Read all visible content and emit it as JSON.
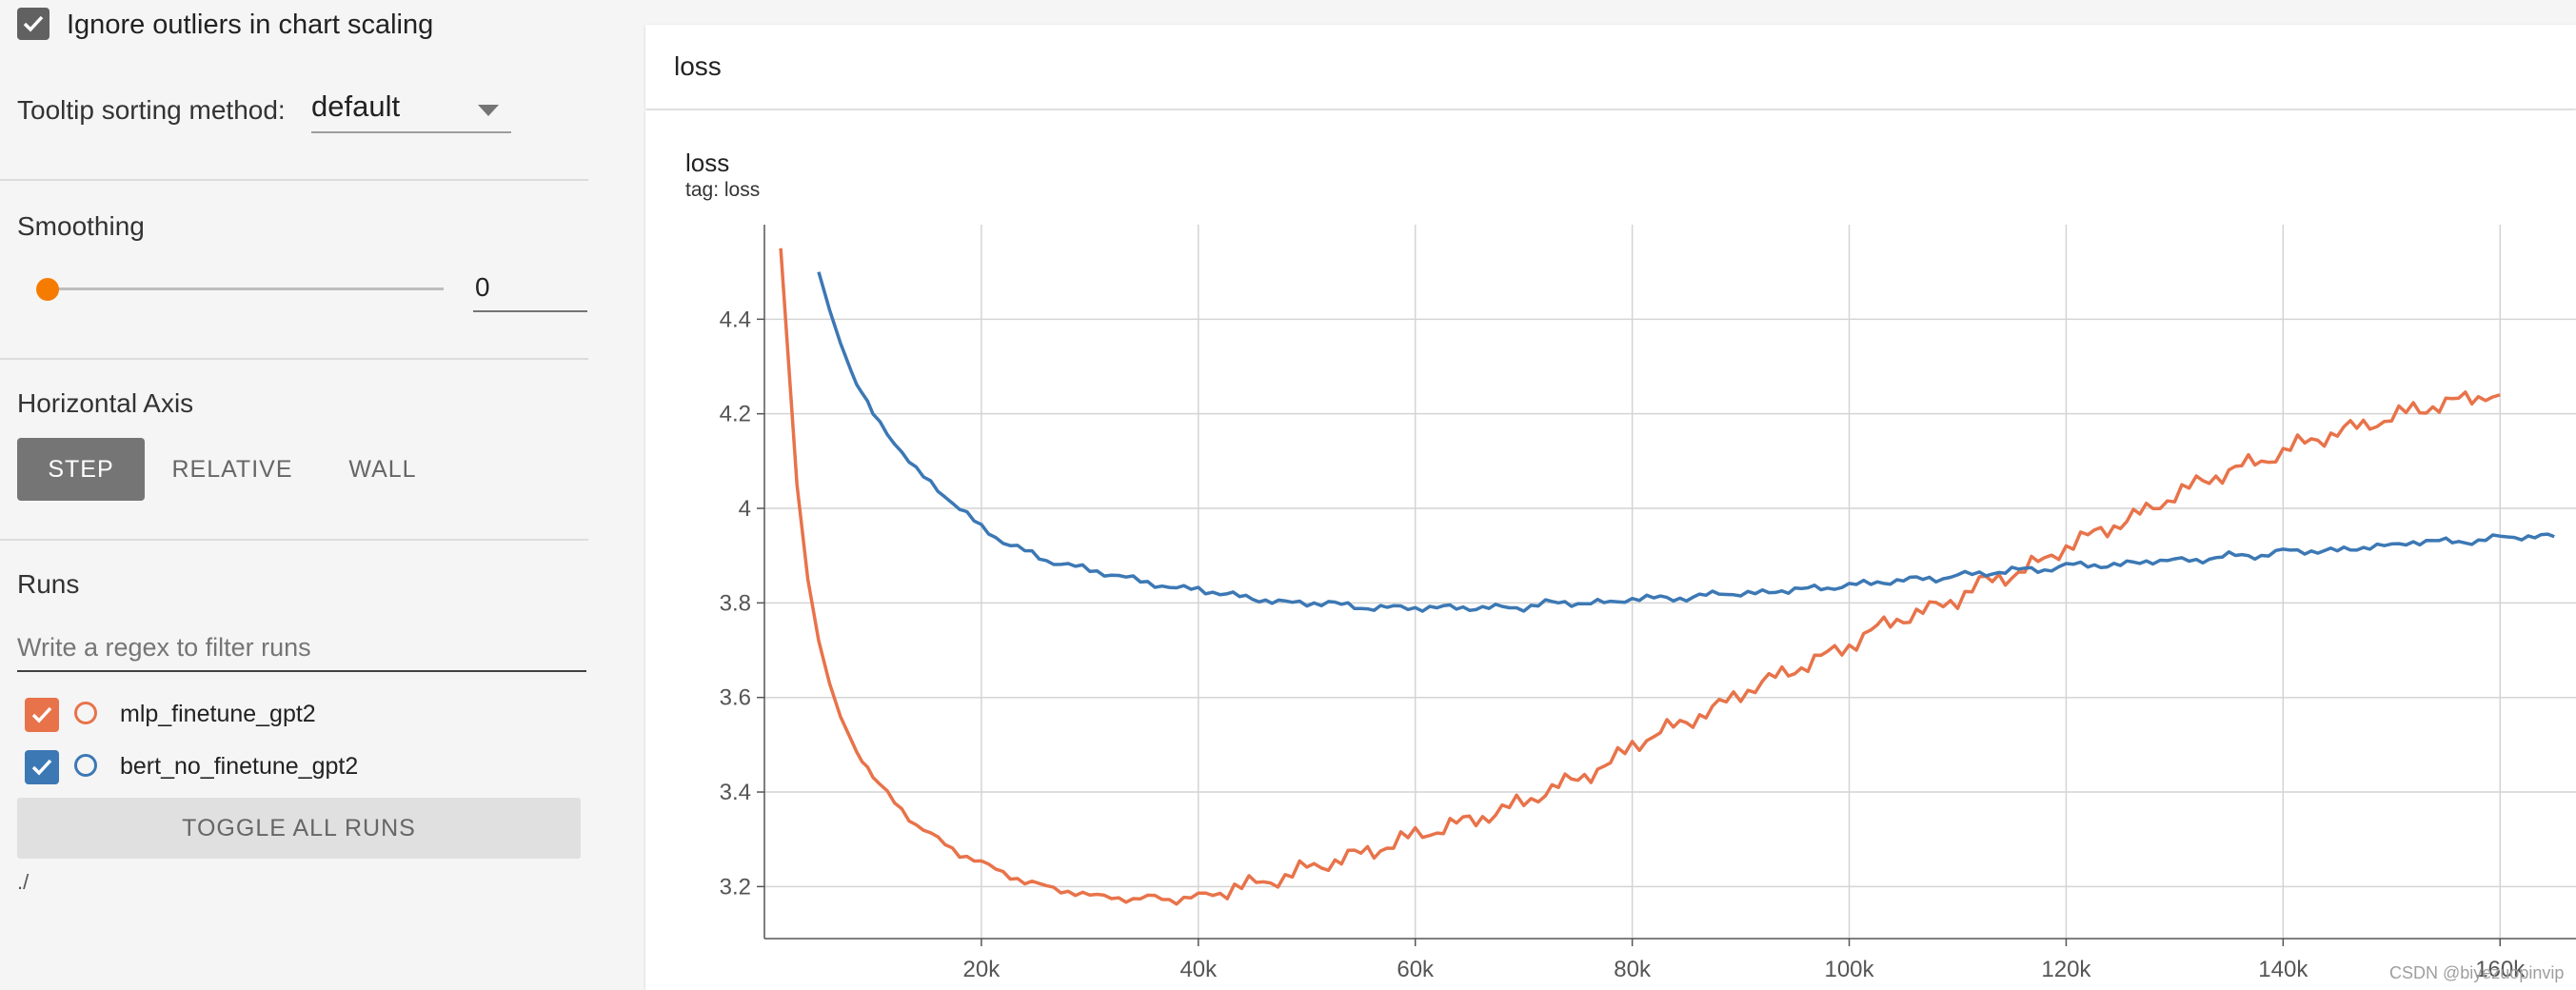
{
  "sidebar": {
    "ignore_outliers": {
      "label": "Ignore outliers in chart scaling",
      "checked": true
    },
    "tooltip": {
      "label": "Tooltip sorting method:",
      "value": "default"
    },
    "smoothing": {
      "label": "Smoothing",
      "value": "0"
    },
    "horizontal_axis": {
      "label": "Horizontal Axis",
      "options": [
        "STEP",
        "RELATIVE",
        "WALL"
      ],
      "selected": "STEP"
    },
    "runs": {
      "label": "Runs",
      "filter_placeholder": "Write a regex to filter runs",
      "items": [
        {
          "name": "mlp_finetune_gpt2",
          "color": "#e8734a",
          "checked": true
        },
        {
          "name": "bert_no_finetune_gpt2",
          "color": "#3c78b4",
          "checked": true
        }
      ],
      "toggle_label": "TOGGLE ALL RUNS",
      "path": "./"
    }
  },
  "main": {
    "group_title": "loss",
    "card": {
      "title": "loss",
      "tag": "tag: loss"
    },
    "watermark": "CSDN @biyezuopinvip"
  },
  "colors": {
    "accent_orange": "#e8734a",
    "accent_blue": "#3c78b4",
    "selected_button": "#757575"
  },
  "chart_data": {
    "type": "line",
    "title": "loss",
    "subtitle": "tag: loss",
    "xlabel": "",
    "ylabel": "",
    "x_ticks": [
      "20k",
      "40k",
      "60k",
      "80k",
      "100k",
      "120k",
      "140k",
      "160k"
    ],
    "y_ticks": [
      "3.2",
      "3.4",
      "3.6",
      "3.8",
      "4",
      "4.2",
      "4.4"
    ],
    "xlim": [
      0,
      167000
    ],
    "ylim": [
      3.09,
      4.6
    ],
    "grid": true,
    "series": [
      {
        "name": "mlp_finetune_gpt2",
        "color": "#e8734a",
        "x": [
          1500,
          3000,
          4000,
          5000,
          6000,
          7000,
          8000,
          9000,
          10000,
          12000,
          14000,
          16000,
          18000,
          20000,
          22000,
          24000,
          26000,
          28000,
          30000,
          32000,
          34000,
          36000,
          38000,
          40000,
          42000,
          44000,
          46000,
          48000,
          50000,
          52000,
          55000,
          58000,
          60000,
          62000,
          65000,
          68000,
          70000,
          72000,
          75000,
          78000,
          80000,
          82000,
          85000,
          88000,
          90000,
          92000,
          95000,
          98000,
          100000,
          102000,
          105000,
          108000,
          110000,
          112000,
          115000,
          118000,
          120000,
          122000,
          125000,
          128000,
          130000,
          132000,
          135000,
          138000,
          140000,
          142000,
          145000,
          148000,
          150000,
          152000,
          155000,
          158000,
          160000
        ],
        "values": [
          4.55,
          4.05,
          3.85,
          3.72,
          3.63,
          3.56,
          3.51,
          3.47,
          3.43,
          3.38,
          3.33,
          3.3,
          3.27,
          3.25,
          3.23,
          3.21,
          3.2,
          3.19,
          3.18,
          3.18,
          3.17,
          3.18,
          3.17,
          3.18,
          3.19,
          3.2,
          3.21,
          3.22,
          3.24,
          3.25,
          3.27,
          3.29,
          3.31,
          3.32,
          3.34,
          3.36,
          3.38,
          3.4,
          3.43,
          3.46,
          3.5,
          3.52,
          3.55,
          3.58,
          3.61,
          3.63,
          3.66,
          3.69,
          3.71,
          3.74,
          3.77,
          3.79,
          3.81,
          3.84,
          3.86,
          3.89,
          3.92,
          3.94,
          3.97,
          4.0,
          4.03,
          4.05,
          4.08,
          4.1,
          4.12,
          4.14,
          4.16,
          4.18,
          4.19,
          4.21,
          4.22,
          4.24,
          4.24
        ]
      },
      {
        "name": "bert_no_finetune_gpt2",
        "color": "#3c78b4",
        "x": [
          5000,
          6000,
          7000,
          8000,
          9000,
          10000,
          12000,
          14000,
          16000,
          18000,
          20000,
          22000,
          24000,
          26000,
          28000,
          30000,
          32000,
          34000,
          36000,
          38000,
          40000,
          42000,
          45000,
          48000,
          50000,
          52000,
          55000,
          58000,
          60000,
          62000,
          65000,
          68000,
          70000,
          72000,
          75000,
          78000,
          80000,
          82000,
          85000,
          88000,
          90000,
          92000,
          95000,
          98000,
          100000,
          102000,
          105000,
          108000,
          110000,
          112000,
          115000,
          118000,
          120000,
          122000,
          125000,
          128000,
          130000,
          132000,
          135000,
          138000,
          140000,
          142000,
          145000,
          148000,
          150000,
          152000,
          155000,
          158000,
          160000,
          162000,
          165000
        ],
        "values": [
          4.5,
          4.42,
          4.35,
          4.29,
          4.24,
          4.2,
          4.14,
          4.08,
          4.04,
          4.0,
          3.96,
          3.93,
          3.91,
          3.89,
          3.88,
          3.87,
          3.86,
          3.85,
          3.84,
          3.83,
          3.83,
          3.82,
          3.81,
          3.8,
          3.8,
          3.8,
          3.79,
          3.79,
          3.79,
          3.79,
          3.79,
          3.79,
          3.79,
          3.8,
          3.8,
          3.8,
          3.81,
          3.81,
          3.81,
          3.82,
          3.82,
          3.82,
          3.83,
          3.83,
          3.84,
          3.84,
          3.85,
          3.85,
          3.86,
          3.86,
          3.87,
          3.87,
          3.88,
          3.88,
          3.88,
          3.89,
          3.89,
          3.89,
          3.9,
          3.9,
          3.91,
          3.91,
          3.91,
          3.92,
          3.92,
          3.93,
          3.93,
          3.93,
          3.94,
          3.94,
          3.94
        ]
      }
    ]
  }
}
